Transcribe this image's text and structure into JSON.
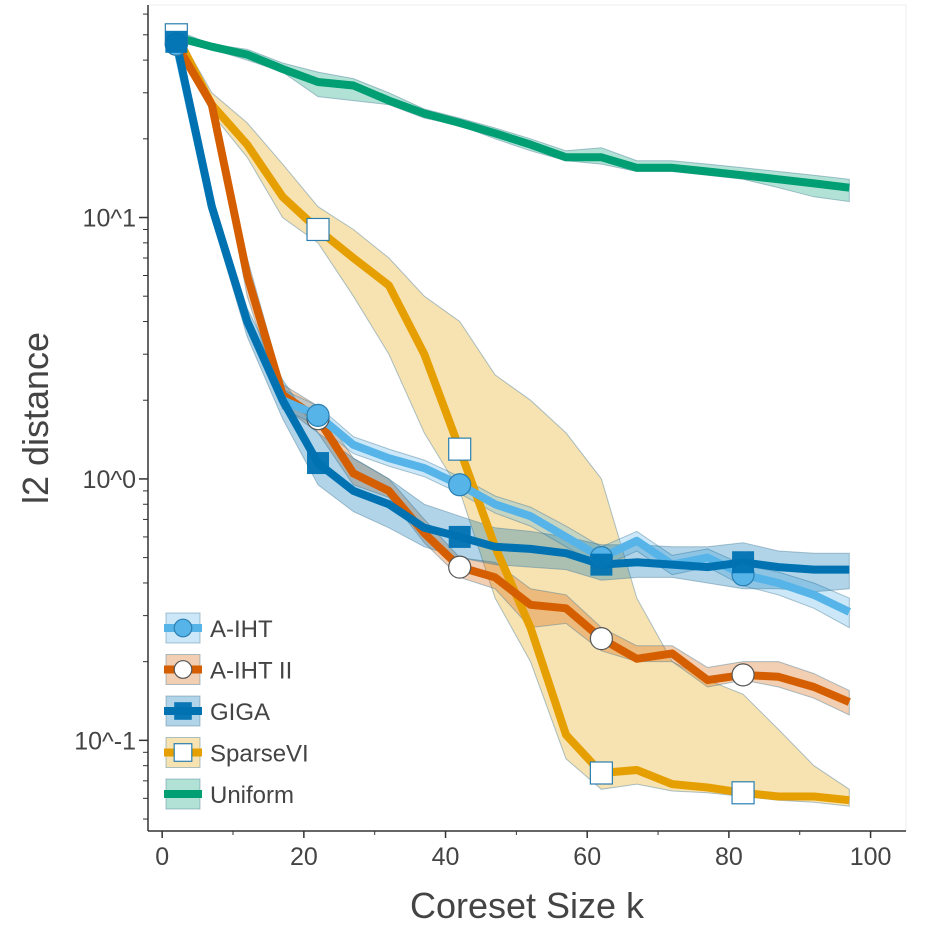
{
  "chart_data": {
    "type": "line",
    "title": "",
    "xlabel": "Coreset Size k",
    "ylabel": "l2 distance",
    "xlim": [
      -2,
      105
    ],
    "ylim": [
      0.045,
      65
    ],
    "yscale": "log",
    "grid": false,
    "legend_position": "lower-left",
    "x_ticks": [
      0,
      20,
      40,
      60,
      80,
      100
    ],
    "x_tick_labels": [
      "0",
      "20",
      "40",
      "60",
      "80",
      "100"
    ],
    "y_ticks": [
      0.1,
      1,
      10
    ],
    "y_tick_labels": [
      "10^-1",
      "10^0",
      "10^1"
    ],
    "x": [
      2,
      7,
      12,
      17,
      22,
      27,
      32,
      37,
      42,
      47,
      52,
      57,
      62,
      67,
      72,
      77,
      82,
      87,
      92,
      97
    ],
    "series": [
      {
        "name": "Uniform",
        "color": "#009e73",
        "marker": "none",
        "values": [
          49,
          45,
          42,
          37,
          33,
          32,
          28,
          25,
          23,
          21,
          19,
          17,
          17,
          15.5,
          15.5,
          15,
          14.5,
          14,
          13.5,
          13
        ],
        "lower": [
          47,
          44,
          40,
          36,
          29,
          28,
          27,
          24,
          22.5,
          20,
          18,
          16.5,
          16,
          15,
          15,
          14.5,
          14,
          13,
          12,
          11.5
        ],
        "upper": [
          52,
          46,
          44,
          39,
          36,
          34,
          30,
          26,
          24,
          22,
          20,
          18,
          18.5,
          16.5,
          16.5,
          16,
          15.5,
          15,
          14.5,
          14
        ]
      },
      {
        "name": "SparseVI",
        "color": "#e69f00",
        "marker": "square-hollow",
        "values": [
          50,
          27,
          19,
          12,
          9,
          7,
          5.5,
          3,
          1.3,
          0.55,
          0.27,
          0.105,
          0.075,
          0.077,
          0.068,
          0.066,
          0.063,
          0.061,
          0.061,
          0.059
        ],
        "lower": [
          48,
          25,
          17,
          10,
          8,
          5,
          3,
          1.5,
          0.9,
          0.35,
          0.2,
          0.085,
          0.065,
          0.068,
          0.064,
          0.063,
          0.061,
          0.059,
          0.058,
          0.056
        ],
        "upper": [
          52,
          30,
          23,
          16,
          11,
          9,
          7,
          5,
          4,
          2.5,
          2,
          1.5,
          1,
          0.35,
          0.2,
          0.17,
          0.15,
          0.11,
          0.08,
          0.065
        ]
      },
      {
        "name": "A-IHT II",
        "color": "#d55e00",
        "marker": "circle-hollow",
        "values": [
          46,
          27,
          6,
          2.1,
          1.7,
          1.05,
          0.9,
          0.62,
          0.46,
          0.42,
          0.33,
          0.32,
          0.245,
          0.205,
          0.215,
          0.17,
          0.178,
          0.175,
          0.16,
          0.14
        ],
        "lower": [
          44,
          26,
          5,
          1.9,
          1.5,
          0.95,
          0.85,
          0.57,
          0.42,
          0.38,
          0.27,
          0.28,
          0.22,
          0.2,
          0.2,
          0.16,
          0.17,
          0.16,
          0.145,
          0.125
        ],
        "upper": [
          48,
          28,
          7,
          2.3,
          1.9,
          1.2,
          1.0,
          0.7,
          0.5,
          0.48,
          0.38,
          0.36,
          0.27,
          0.23,
          0.23,
          0.19,
          0.2,
          0.2,
          0.18,
          0.155
        ]
      },
      {
        "name": "A-IHT",
        "color": "#56b4e9",
        "marker": "circle-filled",
        "values": [
          46,
          11,
          4,
          2,
          1.75,
          1.35,
          1.2,
          1.1,
          0.95,
          0.8,
          0.72,
          0.6,
          0.5,
          0.58,
          0.47,
          0.5,
          0.43,
          0.4,
          0.36,
          0.31
        ],
        "lower": [
          44,
          10,
          3.7,
          1.85,
          1.6,
          1.25,
          1.12,
          1.02,
          0.88,
          0.74,
          0.66,
          0.55,
          0.46,
          0.53,
          0.43,
          0.46,
          0.39,
          0.36,
          0.32,
          0.27
        ],
        "upper": [
          48,
          12,
          4.3,
          2.2,
          1.9,
          1.45,
          1.3,
          1.18,
          1.02,
          0.86,
          0.78,
          0.66,
          0.55,
          0.63,
          0.51,
          0.54,
          0.47,
          0.44,
          0.4,
          0.35
        ]
      },
      {
        "name": "GIGA",
        "color": "#0072b2",
        "marker": "square-filled",
        "values": [
          47,
          11,
          4,
          2,
          1.15,
          0.9,
          0.8,
          0.65,
          0.6,
          0.55,
          0.54,
          0.52,
          0.47,
          0.48,
          0.47,
          0.46,
          0.48,
          0.46,
          0.45,
          0.45
        ],
        "lower": [
          45,
          10,
          3.5,
          1.7,
          0.95,
          0.75,
          0.65,
          0.55,
          0.5,
          0.47,
          0.46,
          0.45,
          0.41,
          0.42,
          0.42,
          0.4,
          0.38,
          0.38,
          0.37,
          0.38
        ],
        "upper": [
          49,
          12,
          4.5,
          2.4,
          1.5,
          1.2,
          1.0,
          0.8,
          0.72,
          0.65,
          0.63,
          0.6,
          0.56,
          0.56,
          0.55,
          0.55,
          0.57,
          0.53,
          0.52,
          0.52
        ]
      }
    ],
    "markers": {
      "x": [
        2,
        22,
        42,
        62,
        82
      ]
    },
    "legend_order": [
      "A-IHT",
      "A-IHT II",
      "GIGA",
      "SparseVI",
      "Uniform"
    ]
  }
}
